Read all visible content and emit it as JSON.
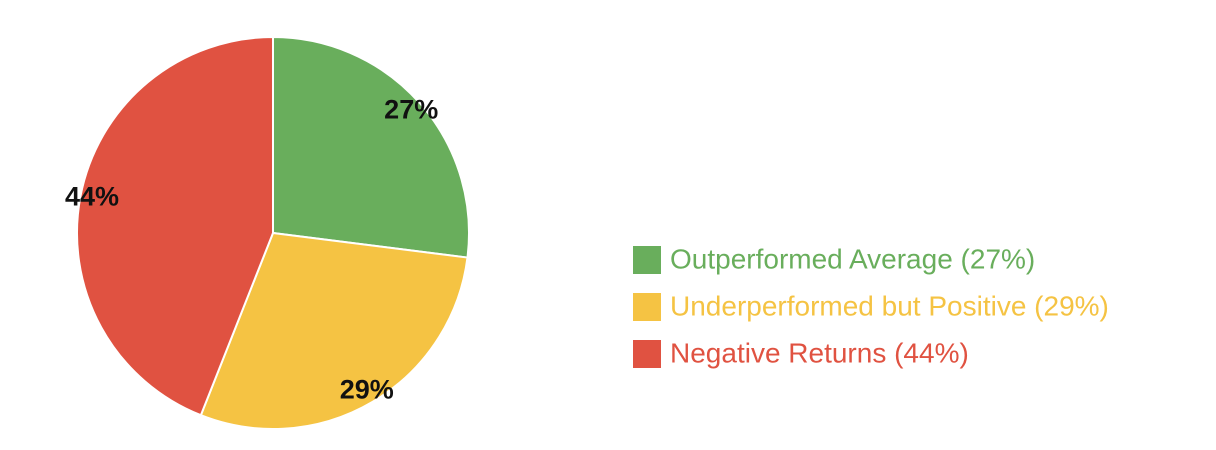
{
  "chart_data": {
    "type": "pie",
    "categories": [
      "Outperformed Average (27%)",
      "Underperformed but Positive (29%)",
      "Negative Returns (44%)"
    ],
    "values": [
      27,
      29,
      44
    ],
    "value_labels": [
      "27%",
      "29%",
      "44%"
    ],
    "colors": [
      "#69ae5c",
      "#f5c343",
      "#e05241"
    ],
    "legend": "right"
  }
}
